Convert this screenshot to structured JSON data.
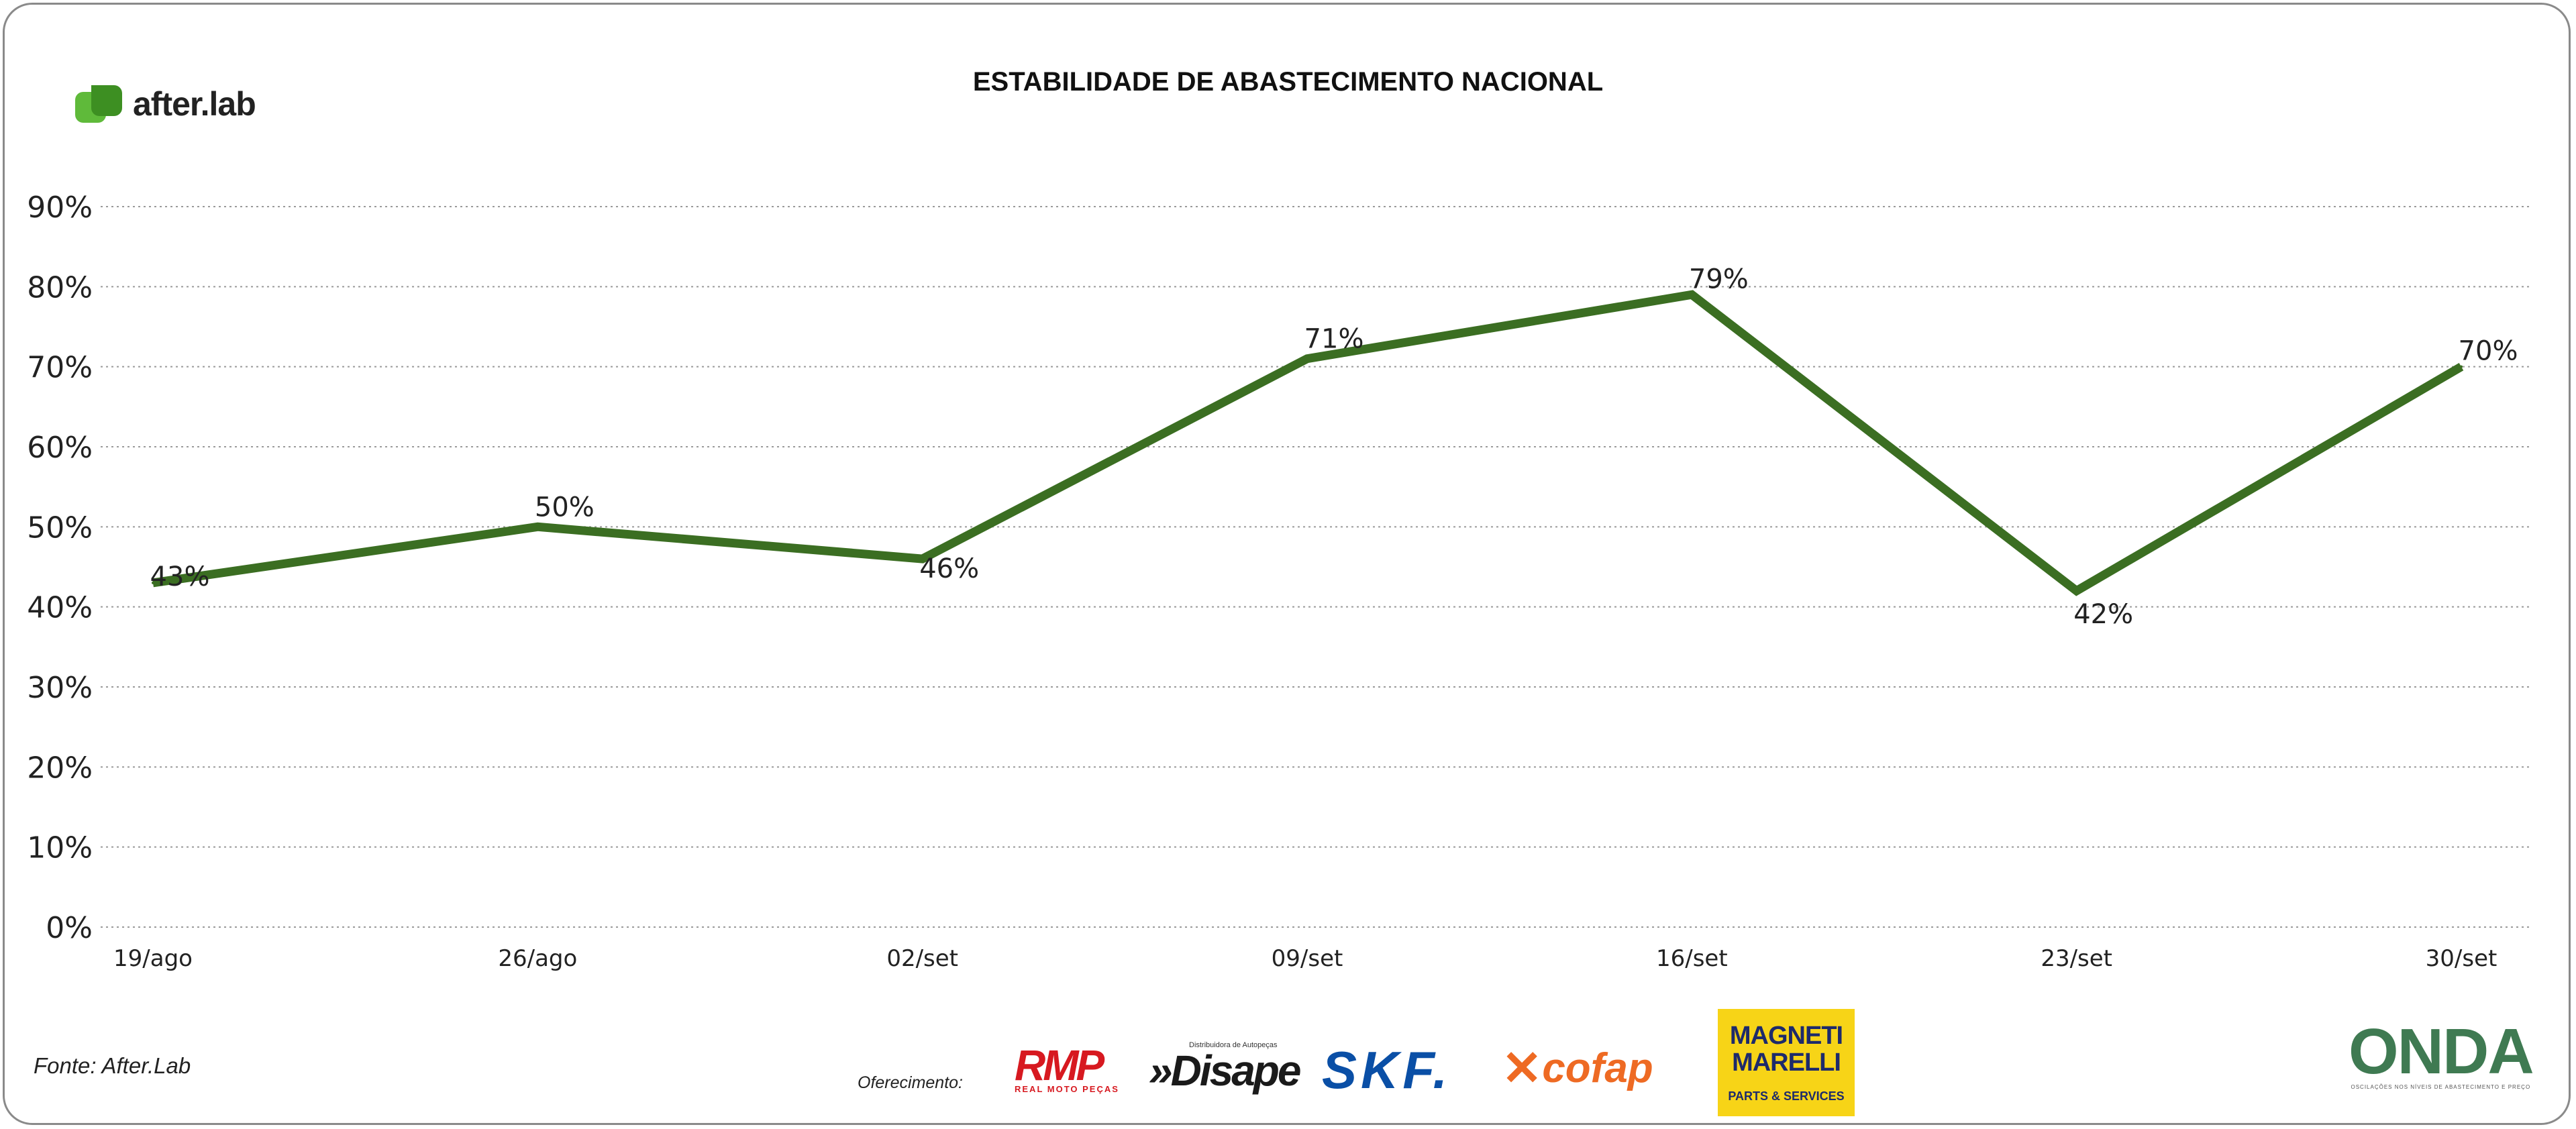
{
  "header": {
    "logo_text": "after.lab",
    "title": "ESTABILIDADE DE ABASTECIMENTO NACIONAL"
  },
  "chart_data": {
    "type": "line",
    "title": "ESTABILIDADE DE ABASTECIMENTO NACIONAL",
    "xlabel": "",
    "ylabel": "",
    "categories": [
      "19/ago",
      "26/ago",
      "02/set",
      "09/set",
      "16/set",
      "23/set",
      "30/set"
    ],
    "series": [
      {
        "values": [
          43,
          50,
          46,
          71,
          79,
          42,
          70
        ],
        "labels": [
          "43%",
          "50%",
          "46%",
          "71%",
          "79%",
          "42%",
          "70%"
        ],
        "color": "#3b6e22"
      }
    ],
    "ylim": [
      0,
      90
    ],
    "yticks": [
      0,
      10,
      20,
      30,
      40,
      50,
      60,
      70,
      80,
      90
    ],
    "ytick_labels": [
      "0%",
      "10%",
      "20%",
      "30%",
      "40%",
      "50%",
      "60%",
      "70%",
      "80%",
      "90%"
    ],
    "grid": true,
    "grid_style": "dotted",
    "legend": "none"
  },
  "footer": {
    "source": "Fonte: After.Lab",
    "offer_label": "Oferecimento:",
    "sponsors": {
      "rmp_big": "RMP",
      "rmp_small": "REAL MOTO PEÇAS",
      "disape_tiny": "Distribuidora de Autopeças",
      "disape_big": "»Disape",
      "skf": "SKF.",
      "cofap_x": "✕",
      "cofap": "cofap",
      "magneti_top": "MAGNETI MARELLI",
      "magneti_bottom": "PARTS & SERVICES",
      "onda_big": "ONDA",
      "onda_small": "OSCILAÇÕES NOS NÍVEIS DE ABASTECIMENTO E PREÇO"
    }
  },
  "colors": {
    "line": "#3b6e22",
    "grid": "#9a9a9a",
    "brand_green": "#5fba3a"
  }
}
